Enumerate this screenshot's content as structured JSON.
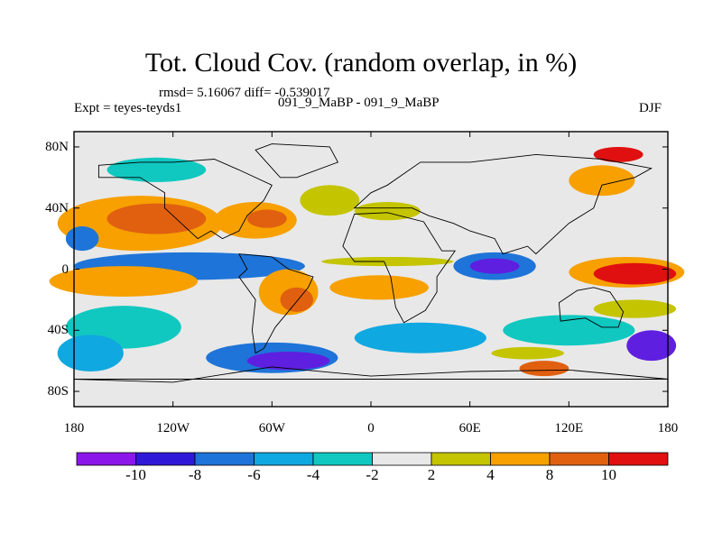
{
  "title": "Tot. Cloud Cov. (random overlap, in %)",
  "subtitle": {
    "stats": "rmsd= 5.16067 diff= -0.539017",
    "experiment": "Expt = teyes-teyds1",
    "cases": "091_9_MaBP - 091_9_MaBP",
    "season": "DJF"
  },
  "map": {
    "projection": "cylindrical equidistant",
    "lon_range": [
      -180,
      180
    ],
    "lat_range": [
      -90,
      90
    ],
    "lat_ticks": [
      {
        "value": 80,
        "label": "80N"
      },
      {
        "value": 40,
        "label": "40N"
      },
      {
        "value": 0,
        "label": "0"
      },
      {
        "value": -40,
        "label": "40S"
      },
      {
        "value": -80,
        "label": "80S"
      }
    ],
    "lon_ticks": [
      {
        "value": -180,
        "label": "180"
      },
      {
        "value": -120,
        "label": "120W"
      },
      {
        "value": -60,
        "label": "60W"
      },
      {
        "value": 0,
        "label": "0"
      },
      {
        "value": 60,
        "label": "60E"
      },
      {
        "value": 120,
        "label": "120E"
      },
      {
        "value": 180,
        "label": "180"
      }
    ],
    "background_color": "#e8e8e8",
    "features": [
      {
        "lon": -140,
        "lat": 30,
        "rx": 50,
        "ry": 18,
        "color": "#f7a000"
      },
      {
        "lon": -130,
        "lat": 33,
        "rx": 30,
        "ry": 10,
        "color": "#e06010"
      },
      {
        "lon": -175,
        "lat": 20,
        "rx": 10,
        "ry": 8,
        "color": "#1e74d8"
      },
      {
        "lon": -70,
        "lat": 32,
        "rx": 25,
        "ry": 12,
        "color": "#f7a000"
      },
      {
        "lon": -63,
        "lat": 33,
        "rx": 12,
        "ry": 6,
        "color": "#e06010"
      },
      {
        "lon": -25,
        "lat": 45,
        "rx": 18,
        "ry": 10,
        "color": "#c4c400"
      },
      {
        "lon": 10,
        "lat": 38,
        "rx": 20,
        "ry": 6,
        "color": "#c4c400"
      },
      {
        "lon": 10,
        "lat": 5,
        "rx": 40,
        "ry": 3,
        "color": "#c4c400"
      },
      {
        "lon": -110,
        "lat": 2,
        "rx": 55,
        "ry": 5,
        "color": "#5f1fe0"
      },
      {
        "lon": -110,
        "lat": 2,
        "rx": 70,
        "ry": 9,
        "color": "#1e74d8"
      },
      {
        "lon": -155,
        "lat": -9,
        "rx": 30,
        "ry": 6,
        "color": "#e01010"
      },
      {
        "lon": -150,
        "lat": -8,
        "rx": 45,
        "ry": 10,
        "color": "#f7a000"
      },
      {
        "lon": 75,
        "lat": 2,
        "rx": 25,
        "ry": 9,
        "color": "#1e74d8"
      },
      {
        "lon": 75,
        "lat": 2,
        "rx": 15,
        "ry": 5,
        "color": "#5f1fe0"
      },
      {
        "lon": 155,
        "lat": -2,
        "rx": 35,
        "ry": 10,
        "color": "#f7a000"
      },
      {
        "lon": 160,
        "lat": -3,
        "rx": 25,
        "ry": 7,
        "color": "#e01010"
      },
      {
        "lon": -50,
        "lat": -15,
        "rx": 18,
        "ry": 15,
        "color": "#f7a000"
      },
      {
        "lon": -45,
        "lat": -20,
        "rx": 10,
        "ry": 8,
        "color": "#e06010"
      },
      {
        "lon": 5,
        "lat": -12,
        "rx": 30,
        "ry": 8,
        "color": "#f7a000"
      },
      {
        "lon": 160,
        "lat": -26,
        "rx": 25,
        "ry": 6,
        "color": "#c4c400"
      },
      {
        "lon": -150,
        "lat": -38,
        "rx": 35,
        "ry": 14,
        "color": "#10c8c0"
      },
      {
        "lon": -60,
        "lat": -58,
        "rx": 40,
        "ry": 10,
        "color": "#1e74d8"
      },
      {
        "lon": -50,
        "lat": -60,
        "rx": 25,
        "ry": 6,
        "color": "#5f1fe0"
      },
      {
        "lon": 30,
        "lat": -45,
        "rx": 40,
        "ry": 10,
        "color": "#10a8e0"
      },
      {
        "lon": 120,
        "lat": -40,
        "rx": 40,
        "ry": 10,
        "color": "#10c8c0"
      },
      {
        "lon": 170,
        "lat": -50,
        "rx": 15,
        "ry": 10,
        "color": "#5f1fe0"
      },
      {
        "lon": -170,
        "lat": -55,
        "rx": 20,
        "ry": 12,
        "color": "#10a8e0"
      },
      {
        "lon": 95,
        "lat": -55,
        "rx": 22,
        "ry": 4,
        "color": "#c4c400"
      },
      {
        "lon": 105,
        "lat": -65,
        "rx": 15,
        "ry": 5,
        "color": "#e06010"
      },
      {
        "lon": 140,
        "lat": 58,
        "rx": 20,
        "ry": 10,
        "color": "#f7a000"
      },
      {
        "lon": 150,
        "lat": 75,
        "rx": 15,
        "ry": 5,
        "color": "#e01010"
      },
      {
        "lon": -130,
        "lat": 65,
        "rx": 30,
        "ry": 8,
        "color": "#10c8c0"
      }
    ]
  },
  "colorbar": {
    "colors": [
      "#8b18e8",
      "#3018d8",
      "#1e74d8",
      "#10a8e0",
      "#10c8c0",
      "#e8e8e8",
      "#c4c400",
      "#f7a000",
      "#e06010",
      "#e01010"
    ],
    "labels": [
      "-10",
      "-8",
      "-6",
      "-4",
      "-2",
      "2",
      "4",
      "8",
      "10"
    ]
  }
}
